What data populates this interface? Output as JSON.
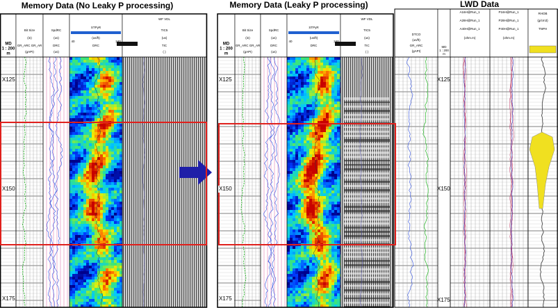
{
  "panels": [
    {
      "title": "Memory Data (No Leaky P processing)",
      "depth_header": {
        "md": "MD",
        "scale": "1 : 200",
        "unit": "m"
      },
      "headers": [
        "Bit Size",
        "(in)",
        "GR_ARC GR_AR",
        "(gAPI)",
        "SpdRC",
        "(us)",
        "DRC",
        "(us)",
        "STPyR",
        "(us/ft)",
        "40",
        "240",
        "DRC",
        "WF VDL",
        "TIC5",
        "(us)",
        "TIC",
        "( )"
      ],
      "depth_labels": [
        "X125",
        "X150",
        "X175"
      ]
    },
    {
      "title": "Memory Data (Leaky P processing)",
      "depth_header": {
        "md": "MD",
        "scale": "1 : 200",
        "unit": "m"
      },
      "headers": [
        "Bit Size",
        "(in)",
        "GR_ARC GR_AR",
        "(gAPI)",
        "SpdRC",
        "(us)",
        "DRC",
        "(us)",
        "STPyR",
        "(us/ft)",
        "40",
        "240",
        "DRC",
        "WF VDL",
        "TIC5",
        "(us)",
        "TIC",
        "( )"
      ],
      "depth_labels": [
        "X125",
        "X150",
        "X175"
      ]
    },
    {
      "title": "LWD Data",
      "depth_header": {
        "md": "MD",
        "scale": "1 : 200",
        "unit": "m"
      },
      "headers": [
        "GR_ARC",
        "(gAPI)",
        "DTCO",
        "(us/ft)",
        "A16H@Run_1",
        "P16H@Run_1",
        "A28H@Run_1",
        "P28H@Run_1",
        "A40H@Run_1",
        "P40H@Run_1",
        "(ohm.m)",
        "(ohm.m)",
        "RHOB",
        "(g/cm3)",
        "TNPH"
      ],
      "depth_labels": [
        "X125",
        "X150",
        "X175"
      ]
    }
  ]
}
